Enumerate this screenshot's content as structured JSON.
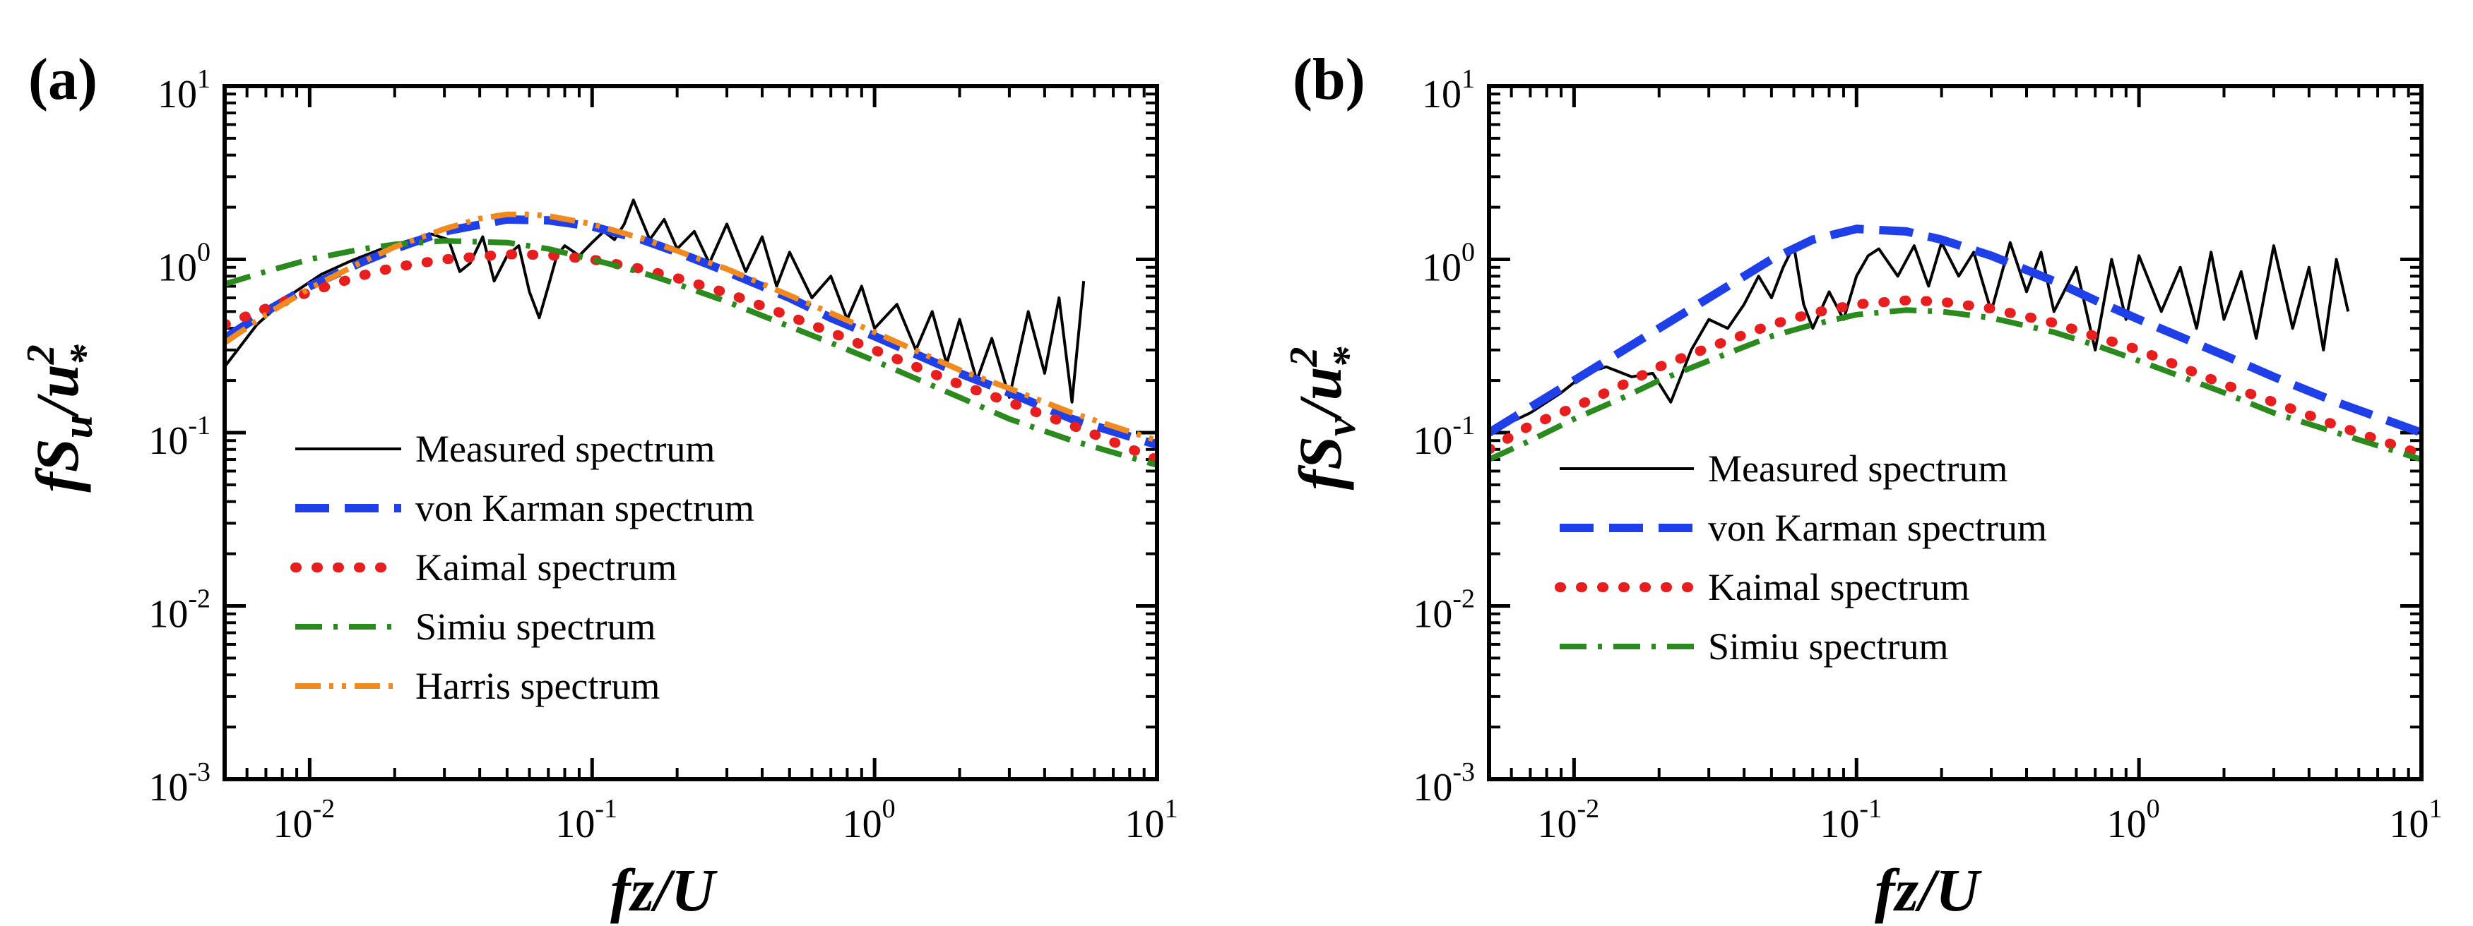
{
  "chart_data": [
    {
      "type": "line",
      "panel_label": "(a)",
      "xscale": "log",
      "yscale": "log",
      "xlim": [
        0.005,
        10
      ],
      "ylim": [
        0.001,
        10
      ],
      "xticks": [
        {
          "base": "10",
          "exp": "-2"
        },
        {
          "base": "10",
          "exp": "-1"
        },
        {
          "base": "10",
          "exp": "0"
        },
        {
          "base": "10",
          "exp": "1"
        }
      ],
      "yticks": [
        {
          "base": "10",
          "exp": "1"
        },
        {
          "base": "10",
          "exp": "0"
        },
        {
          "base": "10",
          "exp": "-1"
        },
        {
          "base": "10",
          "exp": "-2"
        },
        {
          "base": "10",
          "exp": "-3"
        }
      ],
      "xlabel": "fz/U",
      "ylabel": {
        "main": "fS",
        "sub": "u",
        "mid": "/u",
        "sup": "2",
        "star": "*"
      },
      "legend_position": "lower-left",
      "series": [
        {
          "name": "Measured spectrum",
          "style": "solid",
          "color": "#000000",
          "x": [
            0.005,
            0.0065,
            0.0085,
            0.011,
            0.014,
            0.018,
            0.023,
            0.027,
            0.031,
            0.034,
            0.037,
            0.041,
            0.045,
            0.05,
            0.055,
            0.06,
            0.065,
            0.07,
            0.075,
            0.08,
            0.09,
            0.1,
            0.11,
            0.12,
            0.13,
            0.14,
            0.16,
            0.18,
            0.2,
            0.23,
            0.26,
            0.3,
            0.35,
            0.4,
            0.45,
            0.5,
            0.6,
            0.7,
            0.8,
            0.9,
            1.0,
            1.2,
            1.4,
            1.6,
            1.8,
            2.0,
            2.3,
            2.6,
            3.0,
            3.5,
            4.0,
            4.5,
            5.0,
            5.5
          ],
          "y": [
            0.24,
            0.42,
            0.62,
            0.82,
            0.98,
            1.15,
            1.3,
            1.4,
            1.3,
            0.85,
            0.95,
            1.35,
            0.75,
            1.05,
            1.2,
            0.65,
            0.46,
            0.7,
            1.05,
            1.2,
            1.05,
            1.25,
            1.45,
            1.3,
            1.6,
            2.2,
            1.3,
            1.7,
            1.15,
            1.45,
            0.95,
            1.6,
            0.85,
            1.35,
            0.7,
            1.1,
            0.6,
            0.8,
            0.45,
            0.7,
            0.4,
            0.55,
            0.3,
            0.5,
            0.25,
            0.45,
            0.2,
            0.35,
            0.16,
            0.5,
            0.22,
            0.6,
            0.15,
            0.75
          ]
        },
        {
          "name": "von Karman spectrum",
          "style": "dashed",
          "color": "#1f3fe8",
          "x": [
            0.005,
            0.007,
            0.01,
            0.015,
            0.02,
            0.03,
            0.05,
            0.07,
            0.1,
            0.15,
            0.2,
            0.3,
            0.5,
            0.7,
            1.0,
            2.0,
            3.0,
            5.0,
            10.0
          ],
          "y": [
            0.35,
            0.5,
            0.7,
            0.95,
            1.15,
            1.45,
            1.7,
            1.68,
            1.55,
            1.3,
            1.1,
            0.85,
            0.6,
            0.46,
            0.36,
            0.22,
            0.17,
            0.12,
            0.085
          ]
        },
        {
          "name": "Kaimal spectrum",
          "style": "dotted",
          "color": "#e81e1e",
          "x": [
            0.005,
            0.007,
            0.01,
            0.015,
            0.02,
            0.03,
            0.05,
            0.07,
            0.1,
            0.15,
            0.2,
            0.3,
            0.5,
            0.7,
            1.0,
            2.0,
            3.0,
            5.0,
            10.0
          ],
          "y": [
            0.42,
            0.52,
            0.65,
            0.8,
            0.9,
            1.0,
            1.07,
            1.06,
            1.0,
            0.88,
            0.78,
            0.64,
            0.47,
            0.38,
            0.3,
            0.19,
            0.15,
            0.11,
            0.07
          ]
        },
        {
          "name": "Simiu spectrum",
          "style": "dashdot",
          "color": "#2a8a1e",
          "x": [
            0.005,
            0.007,
            0.01,
            0.015,
            0.02,
            0.03,
            0.05,
            0.07,
            0.1,
            0.15,
            0.2,
            0.3,
            0.5,
            0.7,
            1.0,
            2.0,
            3.0,
            5.0,
            10.0
          ],
          "y": [
            0.72,
            0.85,
            1.0,
            1.14,
            1.22,
            1.28,
            1.25,
            1.15,
            1.0,
            0.84,
            0.72,
            0.57,
            0.41,
            0.33,
            0.26,
            0.16,
            0.12,
            0.09,
            0.065
          ]
        },
        {
          "name": "Harris spectrum",
          "style": "dashdotdot",
          "color": "#f08a1e",
          "x": [
            0.005,
            0.007,
            0.01,
            0.015,
            0.02,
            0.03,
            0.04,
            0.05,
            0.06,
            0.07,
            0.1,
            0.15,
            0.2,
            0.3,
            0.5,
            0.7,
            1.0,
            2.0,
            3.0,
            5.0,
            10.0
          ],
          "y": [
            0.33,
            0.48,
            0.68,
            0.95,
            1.18,
            1.5,
            1.72,
            1.82,
            1.82,
            1.78,
            1.6,
            1.32,
            1.12,
            0.88,
            0.62,
            0.49,
            0.38,
            0.23,
            0.18,
            0.13,
            0.09
          ]
        }
      ]
    },
    {
      "type": "line",
      "panel_label": "(b)",
      "xscale": "log",
      "yscale": "log",
      "xlim": [
        0.005,
        10
      ],
      "ylim": [
        0.001,
        10
      ],
      "xticks": [
        {
          "base": "10",
          "exp": "-2"
        },
        {
          "base": "10",
          "exp": "-1"
        },
        {
          "base": "10",
          "exp": "0"
        },
        {
          "base": "10",
          "exp": "1"
        }
      ],
      "yticks": [
        {
          "base": "10",
          "exp": "1"
        },
        {
          "base": "10",
          "exp": "0"
        },
        {
          "base": "10",
          "exp": "-1"
        },
        {
          "base": "10",
          "exp": "-2"
        },
        {
          "base": "10",
          "exp": "-3"
        }
      ],
      "xlabel": "fz/U",
      "ylabel": {
        "main": "fS",
        "sub": "v",
        "mid": "/u",
        "sup": "2",
        "star": "*"
      },
      "legend_position": "lower-left",
      "series": [
        {
          "name": "Measured spectrum",
          "style": "solid",
          "color": "#000000",
          "x": [
            0.005,
            0.007,
            0.009,
            0.011,
            0.013,
            0.016,
            0.019,
            0.022,
            0.026,
            0.03,
            0.035,
            0.04,
            0.045,
            0.05,
            0.055,
            0.06,
            0.065,
            0.07,
            0.08,
            0.09,
            0.1,
            0.11,
            0.12,
            0.14,
            0.16,
            0.18,
            0.2,
            0.23,
            0.26,
            0.3,
            0.35,
            0.4,
            0.45,
            0.5,
            0.6,
            0.7,
            0.8,
            0.9,
            1.0,
            1.2,
            1.4,
            1.6,
            1.8,
            2.0,
            2.3,
            2.6,
            3.0,
            3.5,
            4.0,
            4.5,
            5.0,
            5.5
          ],
          "y": [
            0.1,
            0.13,
            0.17,
            0.22,
            0.24,
            0.21,
            0.22,
            0.15,
            0.3,
            0.45,
            0.4,
            0.55,
            0.8,
            0.6,
            0.9,
            1.2,
            0.55,
            0.4,
            0.65,
            0.45,
            0.8,
            1.05,
            1.15,
            0.8,
            1.2,
            0.7,
            1.25,
            0.8,
            1.1,
            0.5,
            1.25,
            0.65,
            1.1,
            0.5,
            0.9,
            0.3,
            1.0,
            0.45,
            1.05,
            0.5,
            0.9,
            0.4,
            1.1,
            0.45,
            0.85,
            0.35,
            1.2,
            0.4,
            0.9,
            0.3,
            1.0,
            0.5
          ]
        },
        {
          "name": "von Karman spectrum",
          "style": "dashed",
          "color": "#1f3fe8",
          "x": [
            0.005,
            0.007,
            0.01,
            0.015,
            0.02,
            0.03,
            0.05,
            0.07,
            0.1,
            0.15,
            0.2,
            0.3,
            0.5,
            0.7,
            1.0,
            2.0,
            3.0,
            5.0,
            10.0
          ],
          "y": [
            0.1,
            0.14,
            0.2,
            0.3,
            0.4,
            0.6,
            1.0,
            1.3,
            1.5,
            1.45,
            1.3,
            1.05,
            0.75,
            0.58,
            0.45,
            0.28,
            0.21,
            0.15,
            0.1
          ]
        },
        {
          "name": "Kaimal spectrum",
          "style": "dotted",
          "color": "#e81e1e",
          "x": [
            0.005,
            0.007,
            0.01,
            0.015,
            0.02,
            0.03,
            0.05,
            0.07,
            0.1,
            0.15,
            0.2,
            0.3,
            0.5,
            0.7,
            1.0,
            2.0,
            3.0,
            5.0,
            10.0
          ],
          "y": [
            0.08,
            0.11,
            0.14,
            0.19,
            0.24,
            0.31,
            0.42,
            0.49,
            0.55,
            0.58,
            0.57,
            0.52,
            0.43,
            0.36,
            0.3,
            0.19,
            0.15,
            0.11,
            0.075
          ]
        },
        {
          "name": "Simiu spectrum",
          "style": "dashdot",
          "color": "#2a8a1e",
          "x": [
            0.005,
            0.007,
            0.01,
            0.015,
            0.02,
            0.03,
            0.05,
            0.07,
            0.1,
            0.15,
            0.2,
            0.3,
            0.5,
            0.7,
            1.0,
            2.0,
            3.0,
            5.0,
            10.0
          ],
          "y": [
            0.07,
            0.09,
            0.12,
            0.16,
            0.2,
            0.26,
            0.36,
            0.42,
            0.48,
            0.51,
            0.5,
            0.46,
            0.38,
            0.32,
            0.26,
            0.17,
            0.13,
            0.1,
            0.07
          ]
        }
      ]
    }
  ]
}
